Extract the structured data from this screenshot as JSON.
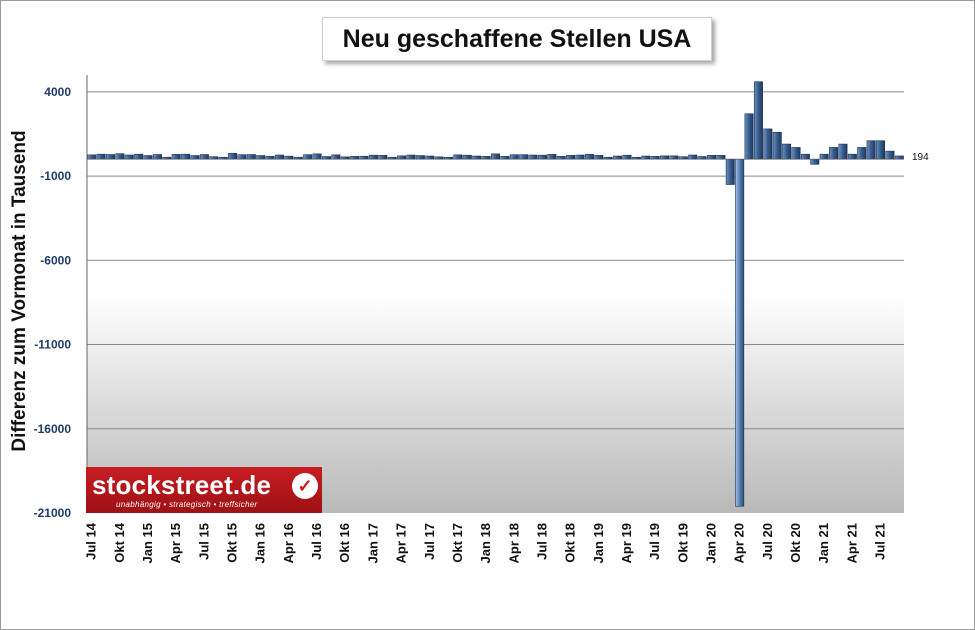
{
  "chart_data": {
    "type": "bar",
    "title": "Neu geschaffene Stellen USA",
    "ylabel": "Differenz zum Vormonat in Tausend",
    "ylim": [
      -21000,
      5000
    ],
    "yticks": [
      4000,
      -1000,
      -6000,
      -11000,
      -16000,
      -21000
    ],
    "ytick_labels": [
      "4000",
      "-1000",
      "-6000",
      "-11000",
      "-16000",
      "-21000"
    ],
    "grid": true,
    "categories": [
      "Jul 14",
      "Aug 14",
      "Sep 14",
      "Okt 14",
      "Nov 14",
      "Dez 14",
      "Jan 15",
      "Feb 15",
      "Mär 15",
      "Apr 15",
      "Mai 15",
      "Jun 15",
      "Jul 15",
      "Aug 15",
      "Sep 15",
      "Okt 15",
      "Nov 15",
      "Dez 15",
      "Jan 16",
      "Feb 16",
      "Mär 16",
      "Apr 16",
      "Mai 16",
      "Jun 16",
      "Jul 16",
      "Aug 16",
      "Sep 16",
      "Okt 16",
      "Nov 16",
      "Dez 16",
      "Jan 17",
      "Feb 17",
      "Mär 17",
      "Apr 17",
      "Mai 17",
      "Jun 17",
      "Jul 17",
      "Aug 17",
      "Sep 17",
      "Okt 17",
      "Nov 17",
      "Dez 17",
      "Jan 18",
      "Feb 18",
      "Mär 18",
      "Apr 18",
      "Mai 18",
      "Jun 18",
      "Jul 18",
      "Aug 18",
      "Sep 18",
      "Okt 18",
      "Nov 18",
      "Dez 18",
      "Jan 19",
      "Feb 19",
      "Mär 19",
      "Apr 19",
      "Mai 19",
      "Jun 19",
      "Jul 19",
      "Aug 19",
      "Sep 19",
      "Okt 19",
      "Nov 19",
      "Dez 19",
      "Jan 20",
      "Feb 20",
      "Mär 20",
      "Apr 20",
      "Mai 20",
      "Jun 20",
      "Jul 20",
      "Aug 20",
      "Sep 20",
      "Okt 20",
      "Nov 20",
      "Dez 20",
      "Jan 21",
      "Feb 21",
      "Mär 21",
      "Apr 21",
      "Mai 21",
      "Jun 21",
      "Jul 21",
      "Aug 21",
      "Sep 21"
    ],
    "tick_labels": [
      "Jul 14",
      "Okt 14",
      "Jan 15",
      "Apr 15",
      "Jul 15",
      "Okt 15",
      "Jan 16",
      "Apr 16",
      "Jul 16",
      "Okt 16",
      "Jan 17",
      "Apr 17",
      "Jul 17",
      "Okt 17",
      "Jan 18",
      "Apr 18",
      "Jul 18",
      "Okt 18",
      "Jan 19",
      "Apr 19",
      "Jul 19",
      "Okt 19",
      "Jan 20",
      "Apr 20",
      "Jul 20",
      "Okt 20",
      "Jan 21",
      "Apr 21",
      "Jul 21"
    ],
    "values": [
      260,
      300,
      280,
      330,
      250,
      300,
      220,
      280,
      100,
      290,
      300,
      220,
      280,
      150,
      80,
      350,
      270,
      280,
      220,
      170,
      250,
      180,
      70,
      270,
      320,
      160,
      260,
      140,
      170,
      180,
      240,
      230,
      100,
      200,
      250,
      220,
      190,
      140,
      20,
      260,
      240,
      190,
      170,
      320,
      170,
      270,
      270,
      250,
      240,
      290,
      170,
      230,
      250,
      290,
      230,
      10,
      190,
      240,
      70,
      190,
      170,
      200,
      200,
      150,
      250,
      160,
      230,
      230,
      -1500,
      -20600,
      2700,
      4600,
      1800,
      1600,
      900,
      700,
      300,
      -300,
      300,
      700,
      900,
      300,
      700,
      1100,
      1100,
      480,
      194
    ],
    "last_value_label": "194",
    "bar_color": "#3a5f8f"
  },
  "logo": {
    "text": "stockstreet.de",
    "tagline": "unabhängig • strategisch • treffsicher",
    "check": "✓"
  }
}
